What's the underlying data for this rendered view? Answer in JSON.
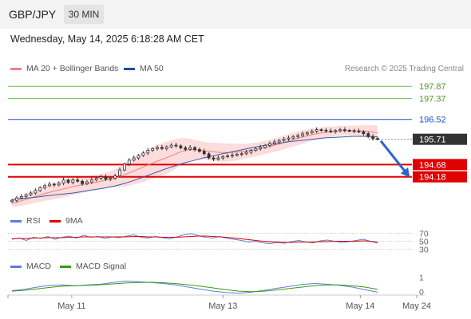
{
  "header": {
    "symbol": "GBP/JPY",
    "timeframe": "30 MIN"
  },
  "datetime": "Wednesday, May 14, 2025 6:18:28 AM CET",
  "price_legend": [
    {
      "label": "MA 20 + Bollinger Bands",
      "color": "#f08080"
    },
    {
      "label": "MA 50",
      "color": "#1f4e9c"
    }
  ],
  "copyright": "Research © 2025 Trading Central",
  "rsi_legend": [
    {
      "label": "RSI",
      "color": "#5a7fd6"
    },
    {
      "label": "9MA",
      "color": "#e00000"
    }
  ],
  "macd_legend": [
    {
      "label": "MACD",
      "color": "#5a7fd6"
    },
    {
      "label": "MACD Signal",
      "color": "#3a9a10"
    }
  ],
  "chart_data": [
    {
      "type": "candlestick",
      "ylim": [
        193.0,
        198.3
      ],
      "levels": [
        {
          "value": 197.87,
          "label": "197.87",
          "style": "green-line"
        },
        {
          "value": 197.37,
          "label": "197.37",
          "style": "green-line"
        },
        {
          "value": 196.52,
          "label": "196.52",
          "style": "blue-line"
        },
        {
          "value": 195.71,
          "label": "195.71",
          "style": "current-price"
        },
        {
          "value": 194.68,
          "label": "194.68",
          "style": "red-line"
        },
        {
          "value": 194.18,
          "label": "194.18",
          "style": "red-line"
        }
      ],
      "closes": [
        193.22,
        193.32,
        193.38,
        193.45,
        193.52,
        193.62,
        193.74,
        193.82,
        193.88,
        193.85,
        193.92,
        194.05,
        193.95,
        194.05,
        194.0,
        193.9,
        193.97,
        194.05,
        194.12,
        194.18,
        194.08,
        194.12,
        194.22,
        194.46,
        194.7,
        194.86,
        194.95,
        195.05,
        195.15,
        195.26,
        195.33,
        195.38,
        195.33,
        195.4,
        195.47,
        195.44,
        195.36,
        195.3,
        195.37,
        195.29,
        195.22,
        195.12,
        194.95,
        194.9,
        194.95,
        195.0,
        195.03,
        195.06,
        195.1,
        195.12,
        195.18,
        195.26,
        195.32,
        195.38,
        195.46,
        195.54,
        195.6,
        195.66,
        195.72,
        195.76,
        195.82,
        195.86,
        195.93,
        195.98,
        196.04,
        196.1,
        196.08,
        196.05,
        196.02,
        196.06,
        196.1,
        196.07,
        196.06,
        196.04,
        196.02,
        195.94,
        195.82,
        195.74,
        195.72
      ],
      "ma20": [
        193.1,
        193.15,
        193.2,
        193.26,
        193.32,
        193.38,
        193.44,
        193.5,
        193.55,
        193.6,
        193.64,
        193.69,
        193.73,
        193.78,
        193.82,
        193.86,
        193.89,
        193.93,
        193.96,
        194.0,
        194.04,
        194.08,
        194.12,
        194.18,
        194.26,
        194.34,
        194.42,
        194.5,
        194.58,
        194.66,
        194.74,
        194.82,
        194.89,
        194.96,
        195.04,
        195.12,
        195.2,
        195.26,
        195.29,
        195.28,
        195.26,
        195.24,
        195.22,
        195.2,
        195.18,
        195.17,
        195.17,
        195.18,
        195.19,
        195.21,
        195.23,
        195.26,
        195.29,
        195.33,
        195.37,
        195.42,
        195.47,
        195.52,
        195.58,
        195.64,
        195.7,
        195.75,
        195.8,
        195.85,
        195.9,
        195.94,
        195.97,
        196.0,
        196.02,
        196.04,
        196.05,
        196.06,
        196.06,
        196.06,
        196.06,
        196.05,
        196.03,
        196.0,
        195.97
      ],
      "ma50": [
        193.25,
        193.27,
        193.29,
        193.31,
        193.33,
        193.35,
        193.37,
        193.4,
        193.42,
        193.44,
        193.46,
        193.48,
        193.5,
        193.52,
        193.55,
        193.58,
        193.61,
        193.64,
        193.67,
        193.7,
        193.73,
        193.77,
        193.81,
        193.86,
        193.91,
        193.97,
        194.03,
        194.1,
        194.17,
        194.24,
        194.31,
        194.38,
        194.45,
        194.52,
        194.58,
        194.64,
        194.7,
        194.76,
        194.81,
        194.86,
        194.91,
        194.96,
        195.0,
        195.04,
        195.08,
        195.12,
        195.16,
        195.2,
        195.24,
        195.28,
        195.32,
        195.36,
        195.4,
        195.43,
        195.46,
        195.49,
        195.52,
        195.55,
        195.58,
        195.61,
        195.63,
        195.65,
        195.67,
        195.69,
        195.71,
        195.73,
        195.75,
        195.77,
        195.78,
        195.79,
        195.8,
        195.81,
        195.82,
        195.83,
        195.83,
        195.83,
        195.83,
        195.82,
        195.81
      ],
      "band_width": [
        0.16,
        0.18,
        0.2,
        0.22,
        0.24,
        0.26,
        0.28,
        0.3,
        0.32,
        0.33,
        0.34,
        0.34,
        0.34,
        0.34,
        0.34,
        0.33,
        0.32,
        0.31,
        0.3,
        0.3,
        0.31,
        0.33,
        0.36,
        0.42,
        0.48,
        0.52,
        0.55,
        0.58,
        0.6,
        0.62,
        0.64,
        0.65,
        0.66,
        0.65,
        0.63,
        0.6,
        0.56,
        0.5,
        0.44,
        0.4,
        0.38,
        0.36,
        0.36,
        0.37,
        0.38,
        0.38,
        0.37,
        0.36,
        0.34,
        0.32,
        0.3,
        0.29,
        0.28,
        0.27,
        0.27,
        0.27,
        0.28,
        0.28,
        0.28,
        0.28,
        0.28,
        0.28,
        0.27,
        0.26,
        0.25,
        0.24,
        0.23,
        0.22,
        0.21,
        0.2,
        0.2,
        0.2,
        0.2,
        0.21,
        0.22,
        0.24,
        0.26,
        0.28,
        0.3
      ],
      "forecast": {
        "from": 195.71,
        "to": 194.18
      }
    },
    {
      "type": "line",
      "title": "RSI",
      "ylim": [
        25,
        75
      ],
      "ticks": [
        70,
        50,
        30
      ],
      "series": [
        {
          "name": "RSI",
          "values": [
            55,
            58,
            52,
            60,
            57,
            62,
            55,
            60,
            63,
            58,
            65,
            60,
            62,
            57,
            61,
            59,
            63,
            66,
            60,
            58,
            62,
            59,
            56,
            61,
            66,
            69,
            64,
            60,
            58,
            62,
            57,
            55,
            52,
            48,
            50,
            46,
            44,
            47,
            45,
            49,
            52,
            48,
            46,
            51,
            53,
            50,
            47,
            49,
            52,
            55,
            50,
            48
          ]
        },
        {
          "name": "9MA",
          "values": [
            56,
            57,
            57,
            58,
            58,
            59,
            59,
            59,
            60,
            60,
            61,
            61,
            61,
            61,
            61,
            61,
            61,
            62,
            62,
            61,
            61,
            60,
            60,
            60,
            61,
            62,
            63,
            63,
            62,
            61,
            60,
            58,
            56,
            54,
            52,
            50,
            49,
            48,
            47,
            47,
            48,
            48,
            48,
            49,
            49,
            50,
            50,
            50,
            50,
            51,
            50,
            46
          ]
        }
      ]
    },
    {
      "type": "line",
      "title": "MACD",
      "ylim": [
        -0.25,
        1.4
      ],
      "ticks": [
        1,
        0
      ],
      "series": [
        {
          "name": "MACD",
          "values": [
            0.05,
            0.15,
            0.3,
            0.42,
            0.45,
            0.4,
            0.45,
            0.5,
            0.62,
            0.72,
            0.68,
            0.62,
            0.55,
            0.45,
            0.3,
            0.15,
            0.02,
            -0.08,
            -0.12,
            -0.05,
            0.08,
            0.22,
            0.35,
            0.48,
            0.55,
            0.5,
            0.42,
            0.3,
            0.12,
            -0.05
          ]
        },
        {
          "name": "MACD Signal",
          "values": [
            0.02,
            0.08,
            0.18,
            0.28,
            0.36,
            0.4,
            0.42,
            0.46,
            0.52,
            0.58,
            0.62,
            0.63,
            0.6,
            0.54,
            0.46,
            0.36,
            0.24,
            0.12,
            0.02,
            -0.02,
            0.02,
            0.1,
            0.2,
            0.3,
            0.4,
            0.45,
            0.45,
            0.4,
            0.3,
            0.15
          ]
        }
      ]
    }
  ],
  "x_axis": {
    "labels": [
      {
        "text": "May 11",
        "t": 0.156
      },
      {
        "text": "May 13",
        "t": 0.526
      },
      {
        "text": "May 14",
        "t": 0.862
      },
      {
        "text": "May 24",
        "t": 1.0
      }
    ]
  }
}
